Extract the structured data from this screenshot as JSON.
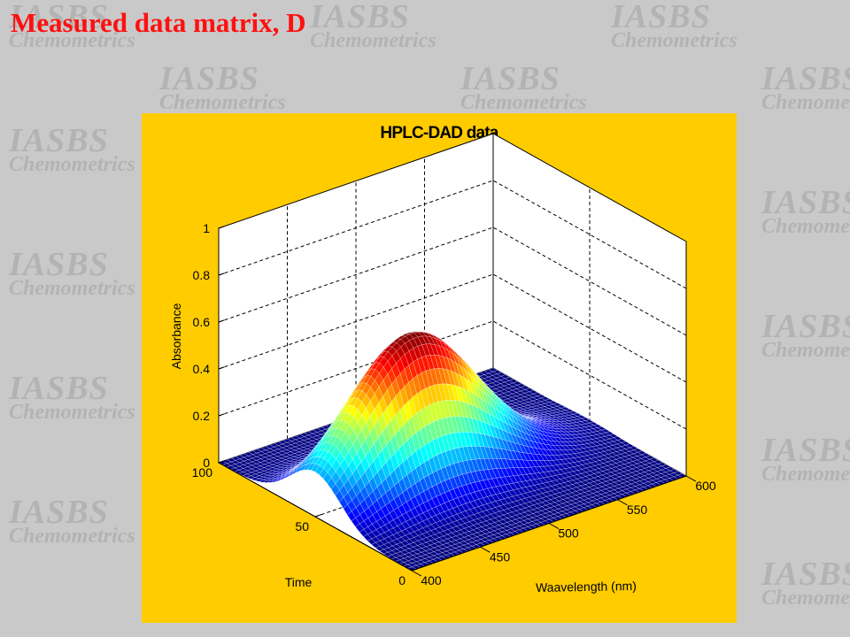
{
  "slide": {
    "title": "Measured data matrix, D",
    "watermark_line1": "IASBS",
    "watermark_line2": "Chemometrics"
  },
  "colors": {
    "title": "#ff1010",
    "figure_background": "#ffcc00",
    "slide_background": "#c9c9c9",
    "watermark": "#b3b3b3",
    "surface_colormap": "jet"
  },
  "chart_data": {
    "type": "surface3d",
    "title": "HPLC-DAD data",
    "xlabel": "Waavelength  (nm)",
    "ylabel": "Time",
    "zlabel": "Absorbance",
    "xlim": [
      400,
      600
    ],
    "ylim": [
      0,
      100
    ],
    "zlim": [
      0,
      1
    ],
    "xticks": [
      "400",
      "450",
      "500",
      "550",
      "600"
    ],
    "yticks": [
      "0",
      "50",
      "100"
    ],
    "zticks": [
      "0",
      "0.2",
      "0.4",
      "0.6",
      "0.8",
      "1"
    ],
    "grid": true,
    "surface": {
      "shape": "gaussian",
      "peak_wavelength_nm": 470,
      "peak_time": 50,
      "peak_absorbance": 0.64,
      "wavelength_sigma_nm": 45,
      "time_sigma": 13
    }
  }
}
